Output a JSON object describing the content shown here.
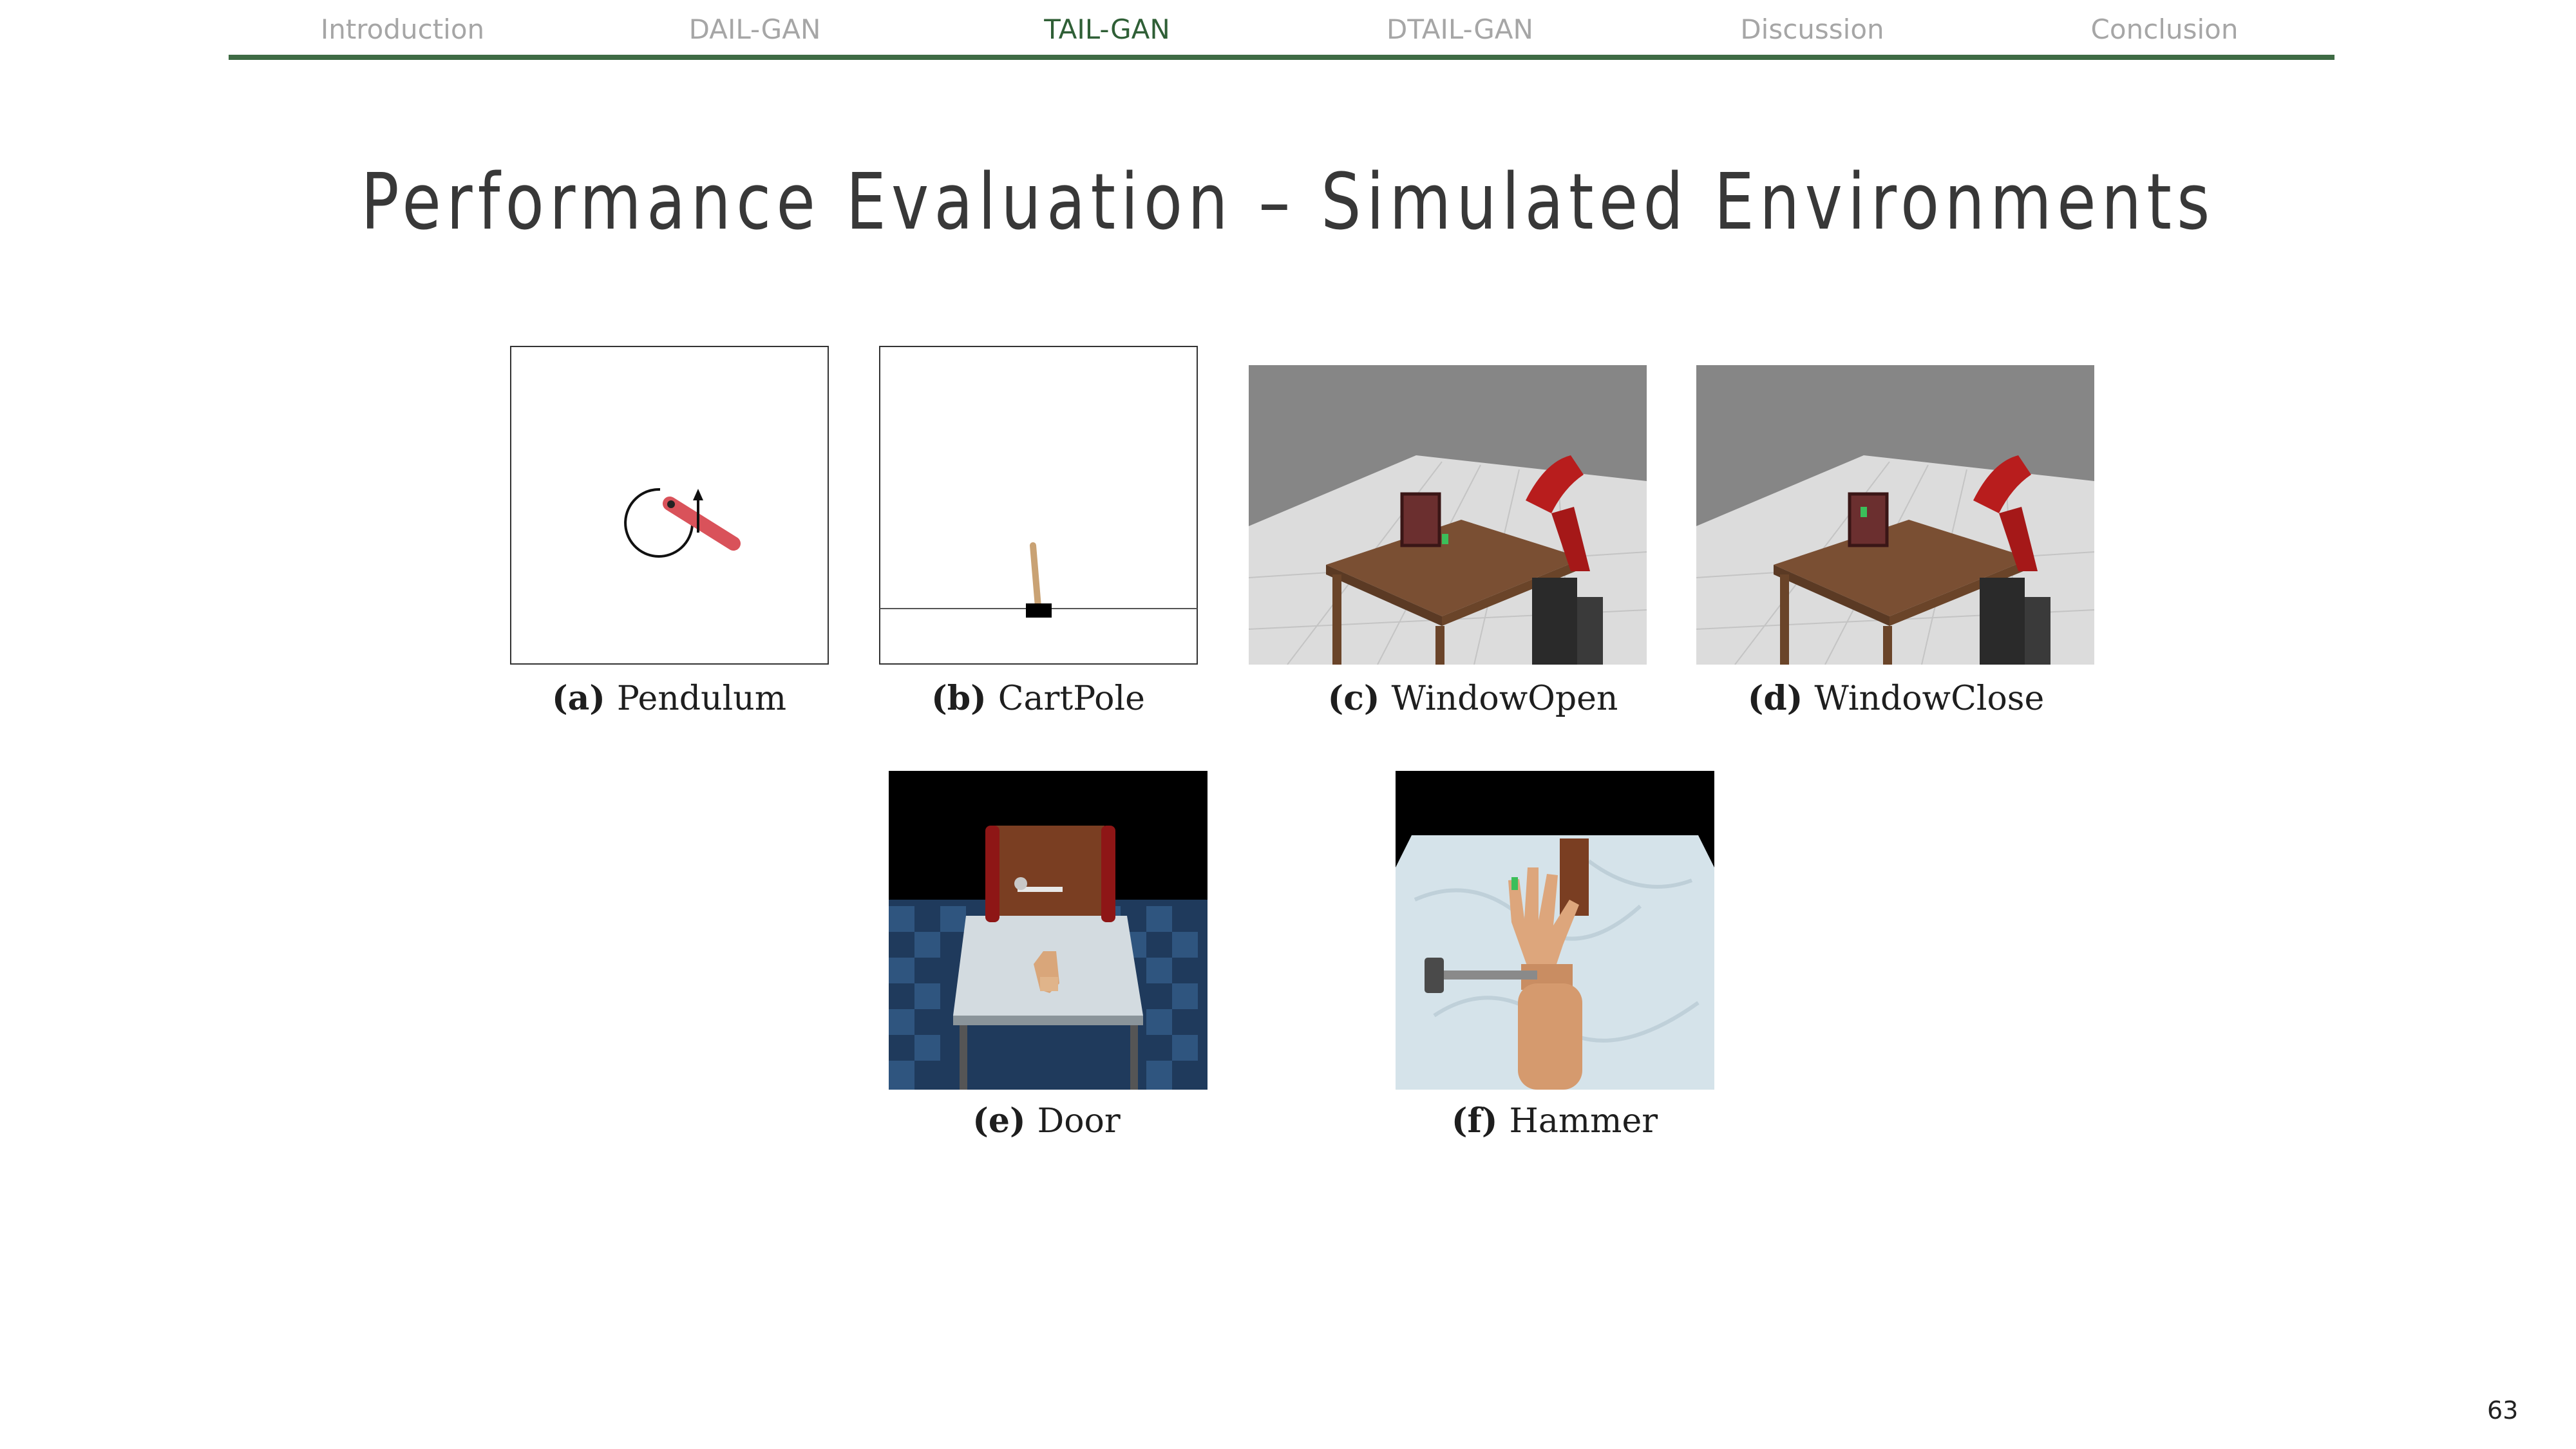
{
  "nav": {
    "items": [
      {
        "label": "Introduction",
        "active": false
      },
      {
        "label": "DAIL-GAN",
        "active": false
      },
      {
        "label": "TAIL-GAN",
        "active": true
      },
      {
        "label": "DTAIL-GAN",
        "active": false
      },
      {
        "label": "Discussion",
        "active": false
      },
      {
        "label": "Conclusion",
        "active": false
      }
    ],
    "active_color": "#2f5f36",
    "inactive_color": "#a6a6a6",
    "rule_color": "#3e6b44"
  },
  "title": "Performance Evaluation – Simulated Environments",
  "figures": [
    {
      "tag": "(a)",
      "label": "Pendulum"
    },
    {
      "tag": "(b)",
      "label": "CartPole"
    },
    {
      "tag": "(c)",
      "label": "WindowOpen"
    },
    {
      "tag": "(d)",
      "label": "WindowClose"
    },
    {
      "tag": "(e)",
      "label": "Door"
    },
    {
      "tag": "(f)",
      "label": "Hammer"
    }
  ],
  "page_number": "63"
}
